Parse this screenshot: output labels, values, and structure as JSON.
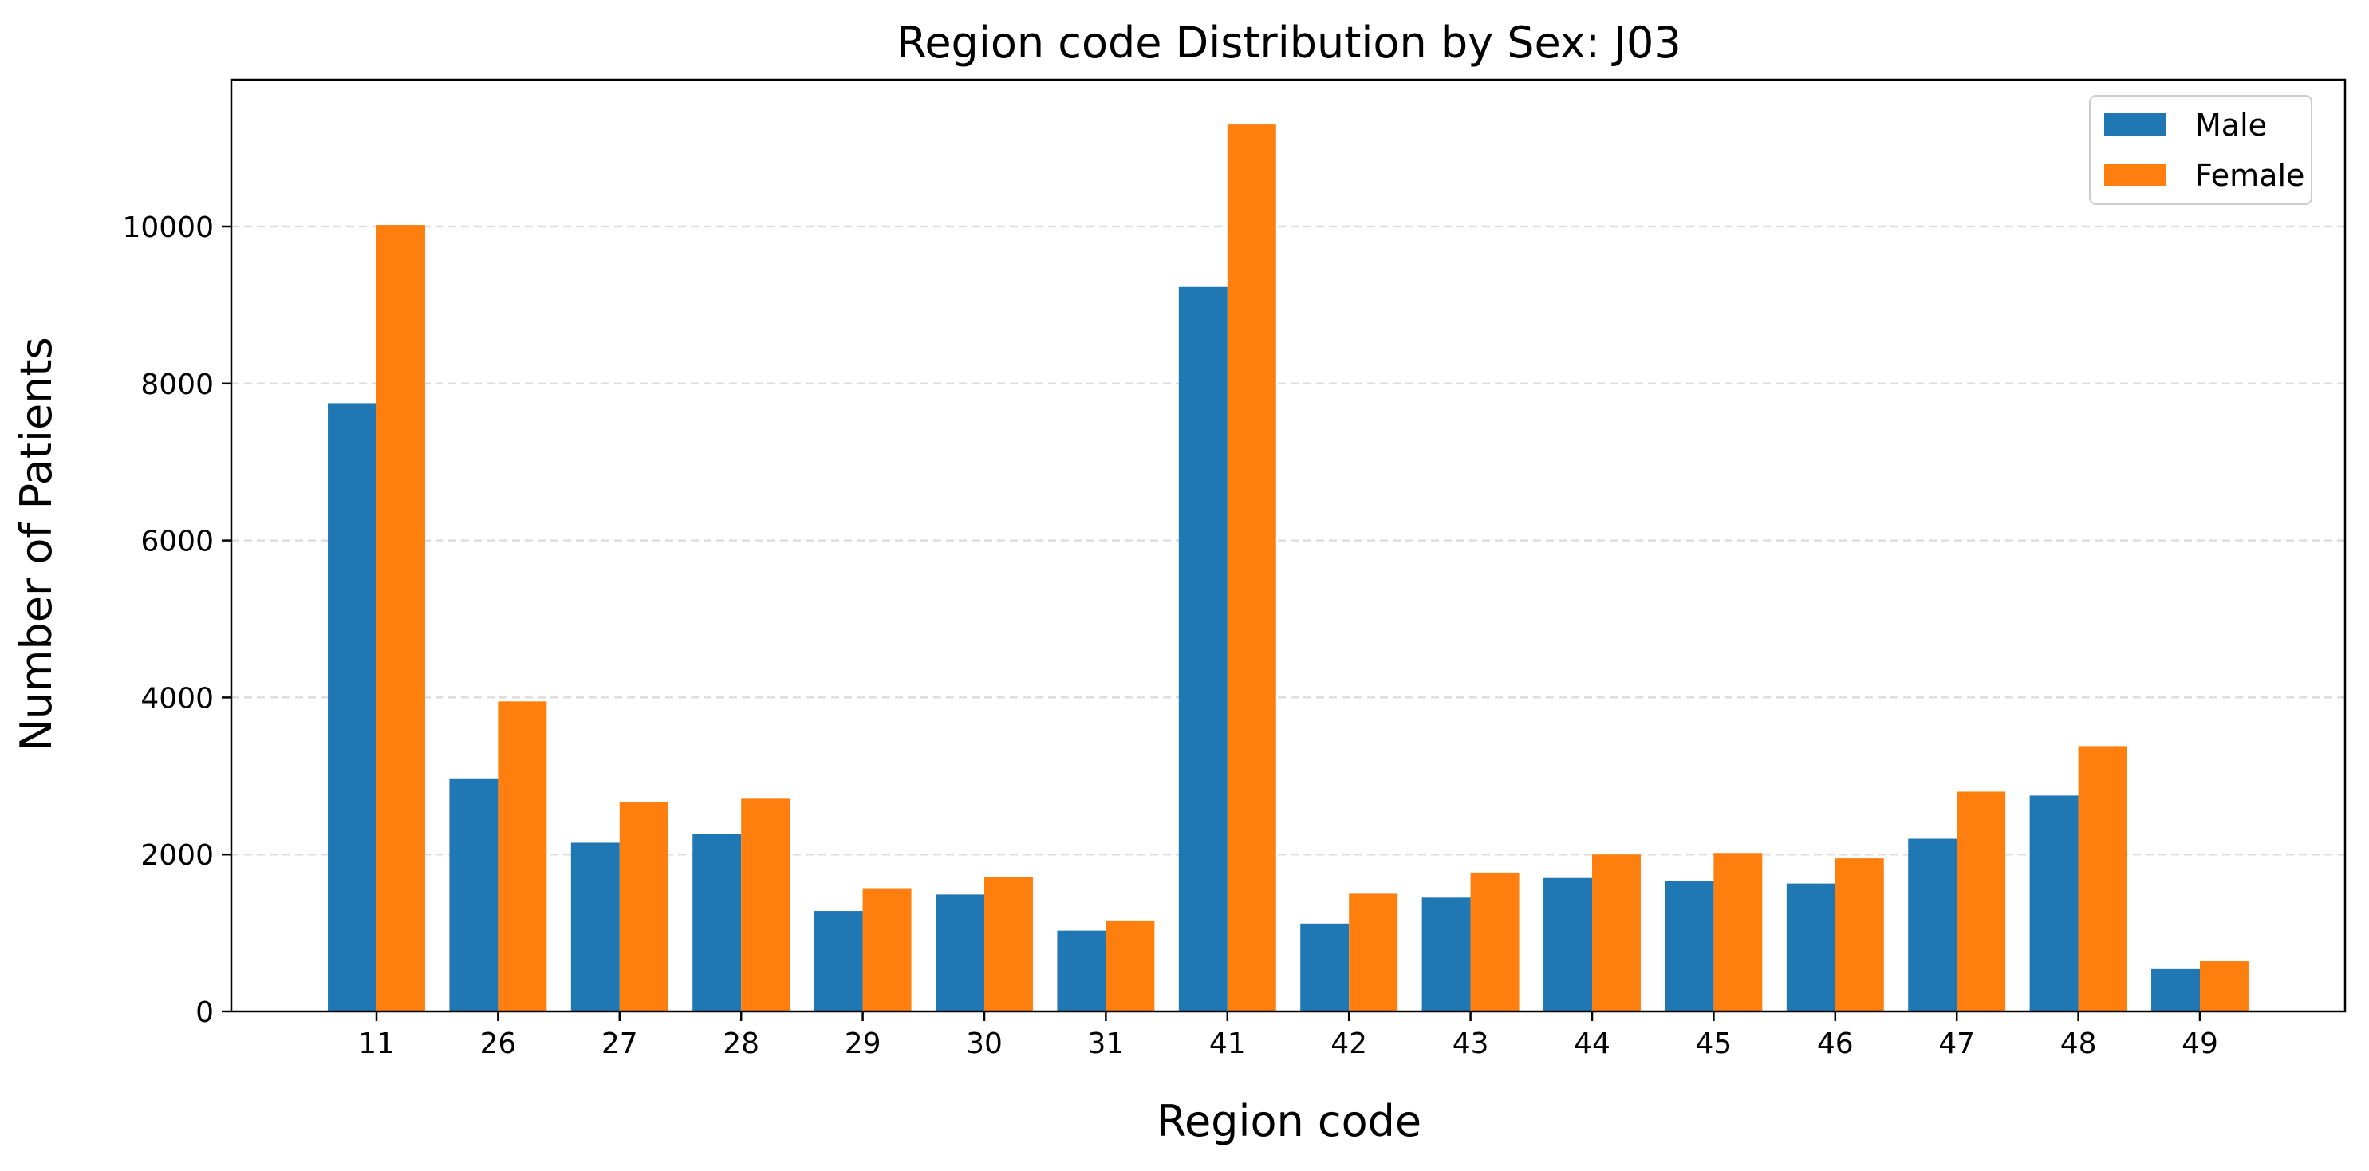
{
  "chart_data": {
    "type": "bar",
    "title": "Region code Distribution by Sex: J03",
    "xlabel": "Region code",
    "ylabel": "Number of Patients",
    "categories": [
      "11",
      "26",
      "27",
      "28",
      "29",
      "30",
      "31",
      "41",
      "42",
      "43",
      "44",
      "45",
      "46",
      "47",
      "48",
      "49"
    ],
    "series": [
      {
        "name": "Male",
        "color": "#1f77b4",
        "values": [
          7750,
          2970,
          2150,
          2260,
          1280,
          1490,
          1030,
          9230,
          1120,
          1450,
          1700,
          1660,
          1630,
          2200,
          2750,
          540
        ]
      },
      {
        "name": "Female",
        "color": "#ff7f0e",
        "values": [
          10020,
          3950,
          2670,
          2710,
          1570,
          1710,
          1160,
          11300,
          1500,
          1770,
          2000,
          2020,
          1950,
          2800,
          3380,
          640
        ]
      }
    ],
    "y_ticks": [
      "0",
      "2000",
      "4000",
      "6000",
      "8000",
      "10000"
    ],
    "ylim": [
      0,
      11870
    ],
    "grid": "horizontal dashed",
    "legend_position": "top-right"
  }
}
